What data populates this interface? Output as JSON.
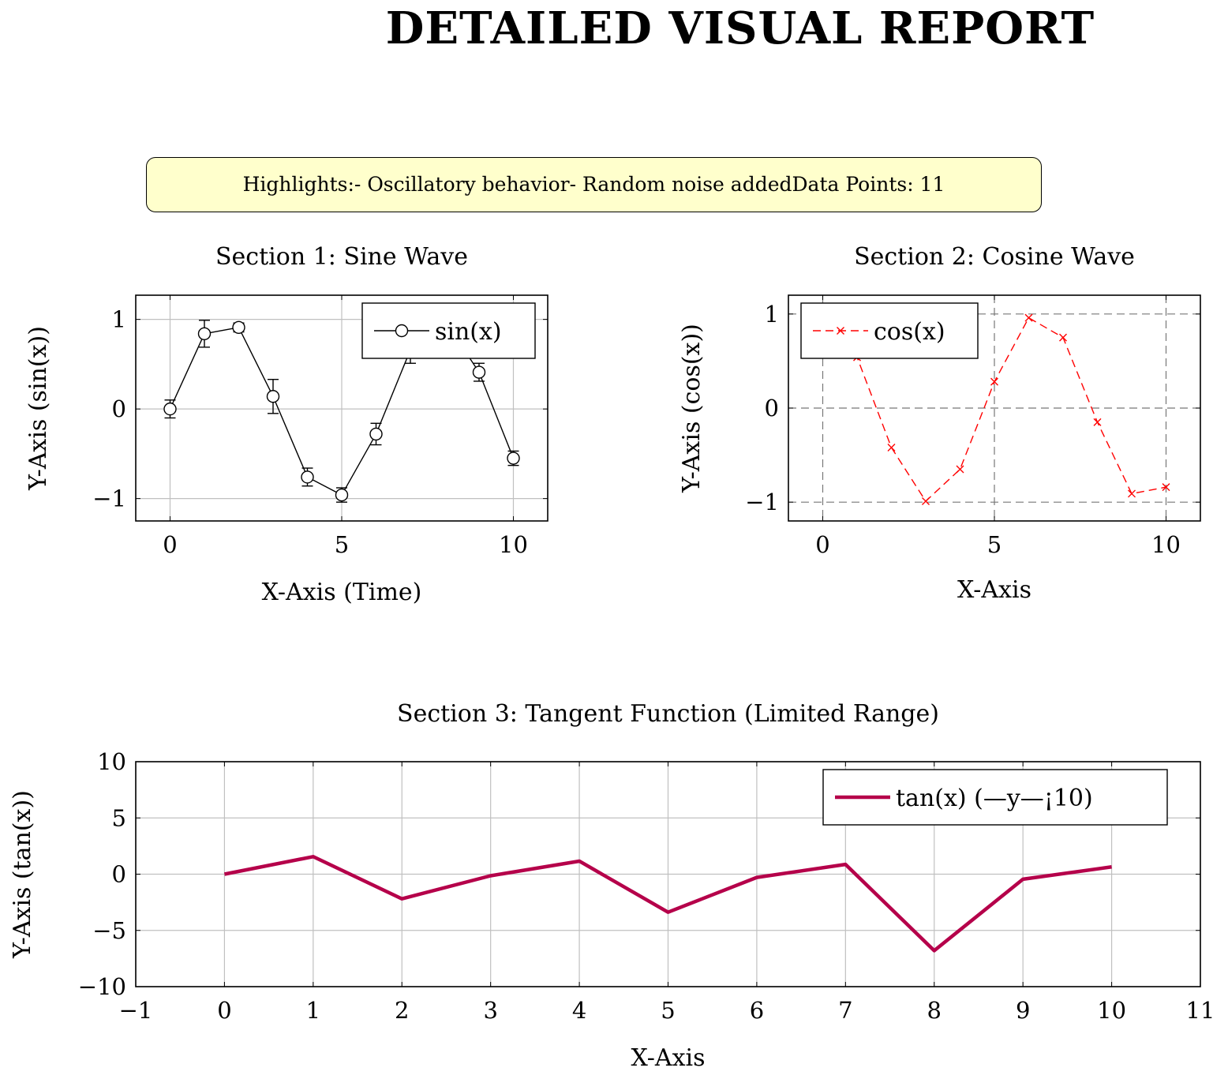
{
  "report": {
    "title": "DETAILED VISUAL REPORT",
    "highlights": "Highlights:- Oscillatory behavior- Random noise addedData Points: 11"
  },
  "chart_data": [
    {
      "type": "line",
      "title": "Section 1: Sine Wave",
      "xlabel": "X-Axis (Time)",
      "ylabel": "Y-Axis (sin(x))",
      "xlim": [
        -1,
        11
      ],
      "ylim": [
        -1.25,
        1.27
      ],
      "xticks": [
        0,
        5,
        10
      ],
      "yticks": [
        -1,
        0,
        1
      ],
      "grid": true,
      "legend": "top-right",
      "series": [
        {
          "name": "sin(x)",
          "color": "#000000",
          "marker": "circle",
          "dash": "solid",
          "x": [
            0,
            1,
            2,
            3,
            4,
            5,
            6,
            7,
            8,
            9,
            10
          ],
          "values": [
            0.0,
            0.84,
            0.91,
            0.14,
            -0.76,
            -0.96,
            -0.28,
            0.66,
            0.99,
            0.41,
            -0.55
          ],
          "error": [
            0.1,
            0.15,
            0.05,
            0.19,
            0.1,
            0.08,
            0.12,
            0.15,
            0.1,
            0.1,
            0.08
          ]
        }
      ]
    },
    {
      "type": "line",
      "title": "Section 2: Cosine Wave",
      "xlabel": "X-Axis",
      "ylabel": "Y-Axis (cos(x))",
      "xlim": [
        -1,
        11
      ],
      "ylim": [
        -1.2,
        1.2
      ],
      "xticks": [
        0,
        5,
        10
      ],
      "yticks": [
        -1,
        0,
        1
      ],
      "grid": true,
      "grid_style": "dashed",
      "legend": "top-left",
      "series": [
        {
          "name": "cos(x)",
          "color": "#ff0000",
          "marker": "x",
          "dash": "dashed",
          "x": [
            0,
            1,
            2,
            3,
            4,
            5,
            6,
            7,
            8,
            9,
            10
          ],
          "values": [
            1.0,
            0.54,
            -0.42,
            -0.99,
            -0.65,
            0.28,
            0.96,
            0.75,
            -0.15,
            -0.91,
            -0.84
          ]
        }
      ]
    },
    {
      "type": "line",
      "title": "Section 3: Tangent Function (Limited Range)",
      "xlabel": "X-Axis",
      "ylabel": "Y-Axis (tan(x))",
      "xlim": [
        -1,
        11
      ],
      "ylim": [
        -10,
        10
      ],
      "xticks": [
        -1,
        0,
        1,
        2,
        3,
        4,
        5,
        6,
        7,
        8,
        9,
        10,
        11
      ],
      "yticks": [
        -10,
        -5,
        0,
        5,
        10
      ],
      "grid": true,
      "legend": "top-right",
      "series": [
        {
          "name": "tan(x) (—y—¡10)",
          "color": "#b5004a",
          "marker": "none",
          "dash": "solid",
          "x": [
            0,
            1,
            2,
            3,
            4,
            5,
            6,
            7,
            8,
            9,
            10
          ],
          "values": [
            0.0,
            1.56,
            -2.19,
            -0.14,
            1.16,
            -3.38,
            -0.29,
            0.87,
            -6.8,
            -0.45,
            0.65
          ]
        }
      ]
    }
  ]
}
